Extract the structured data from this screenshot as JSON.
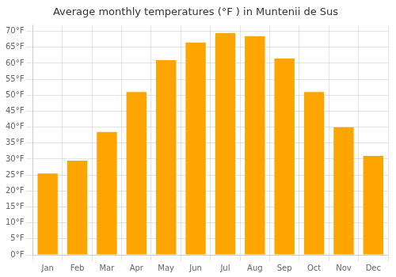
{
  "chart_data": {
    "type": "bar",
    "title": "Average monthly temperatures (°F ) in Muntenii de Sus",
    "categories": [
      "Jan",
      "Feb",
      "Mar",
      "Apr",
      "May",
      "Jun",
      "Jul",
      "Aug",
      "Sep",
      "Oct",
      "Nov",
      "Dec"
    ],
    "values": [
      25.5,
      29.5,
      38.5,
      51.0,
      61.0,
      66.5,
      69.5,
      68.5,
      61.5,
      51.0,
      40.0,
      31.0
    ],
    "color": "#FFA500",
    "ylim": [
      0,
      72
    ],
    "yticks": [
      {
        "value": 0,
        "label": "0°F"
      },
      {
        "value": 5,
        "label": "5°F"
      },
      {
        "value": 10,
        "label": "10°F"
      },
      {
        "value": 15,
        "label": "15°F"
      },
      {
        "value": 20,
        "label": "20°F"
      },
      {
        "value": 25,
        "label": "25°F"
      },
      {
        "value": 30,
        "label": "30°F"
      },
      {
        "value": 35,
        "label": "35°F"
      },
      {
        "value": 40,
        "label": "40°F"
      },
      {
        "value": 45,
        "label": "45°F"
      },
      {
        "value": 50,
        "label": "50°F"
      },
      {
        "value": 55,
        "label": "55°F"
      },
      {
        "value": 60,
        "label": "60°F"
      },
      {
        "value": 65,
        "label": "65°F"
      },
      {
        "value": 70,
        "label": "70°F"
      }
    ],
    "grid": true
  }
}
